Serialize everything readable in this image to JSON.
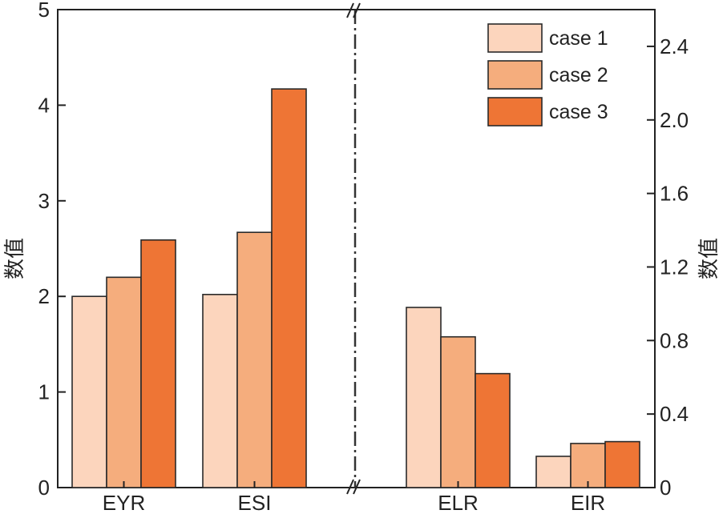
{
  "chart_data": {
    "type": "bar",
    "title": "",
    "left_axis": {
      "ylabel": "数值",
      "ylim": [
        0,
        5
      ],
      "ticks": [
        "0",
        "1",
        "2",
        "3",
        "4",
        "5"
      ]
    },
    "right_axis": {
      "ylabel": "数值",
      "ylim": [
        0,
        2.6
      ],
      "ticks": [
        "0",
        "0.4",
        "0.8",
        "1.2",
        "1.6",
        "2.0",
        "2.4"
      ]
    },
    "categories": [
      "EYR",
      "ESI",
      "ELR",
      "EIR"
    ],
    "category_axis": [
      "left",
      "left",
      "right",
      "right"
    ],
    "series": [
      {
        "name": "case 1",
        "color": "#fcd5bd",
        "values": [
          2.0,
          2.02,
          0.98,
          0.17
        ]
      },
      {
        "name": "case 2",
        "color": "#f5ad7d",
        "values": [
          2.2,
          2.67,
          0.82,
          0.24
        ]
      },
      {
        "name": "case 3",
        "color": "#ee7535",
        "values": [
          2.59,
          4.17,
          0.62,
          0.25
        ]
      }
    ],
    "legend_position": "top-right",
    "axis_break": true
  }
}
